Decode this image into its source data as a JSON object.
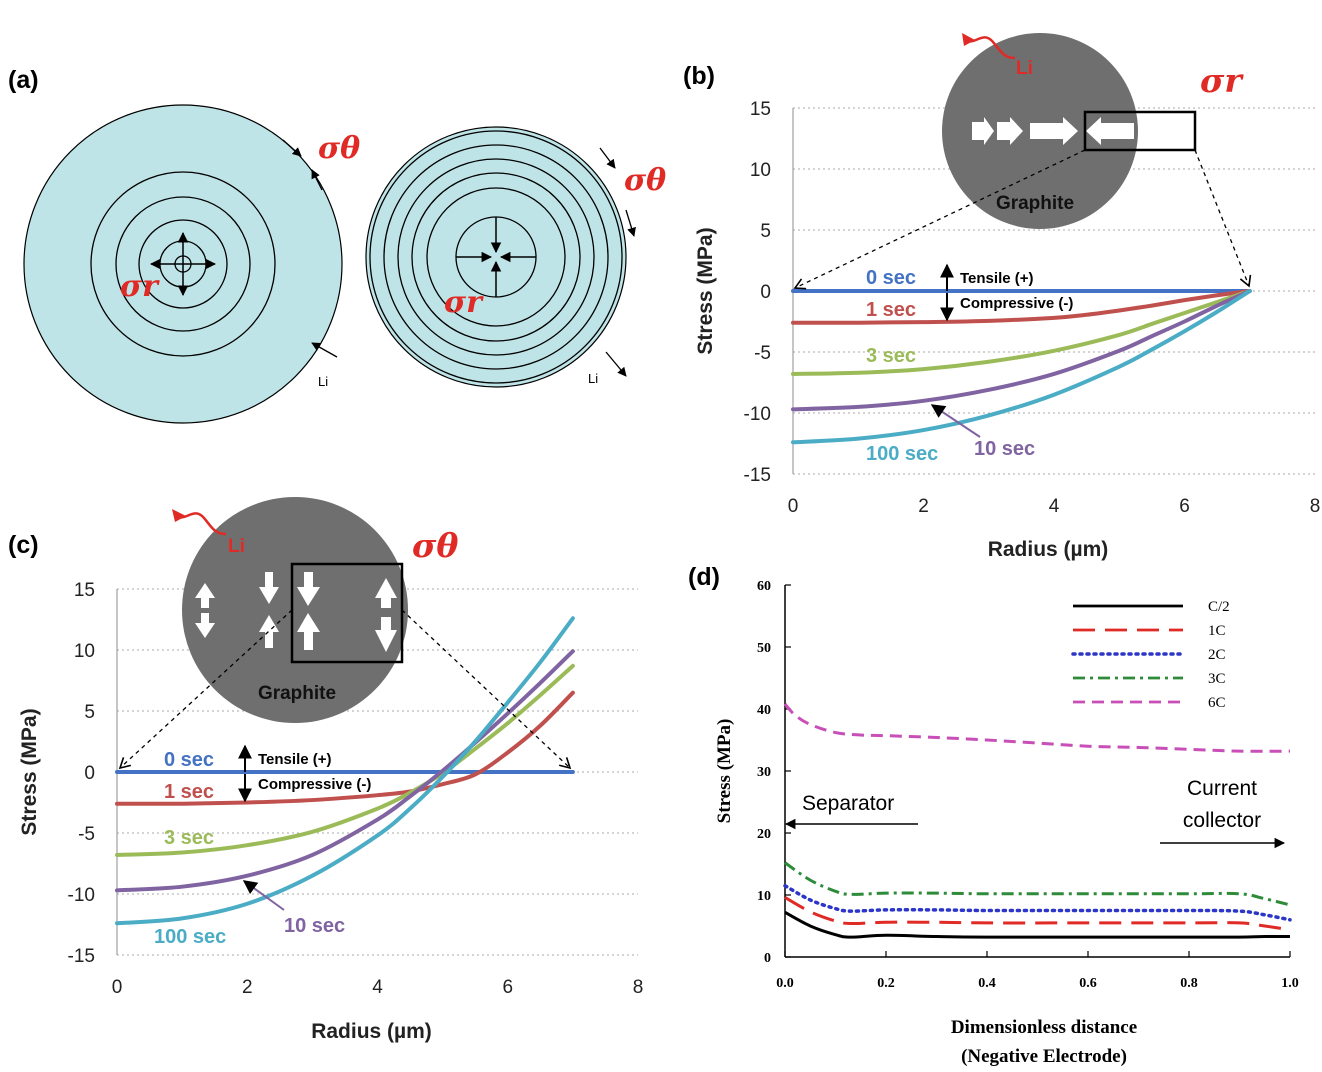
{
  "panels": {
    "a": {
      "label": "(a)",
      "sigma_theta_left": "σθ",
      "sigma_r_left": "σr",
      "li_left": "Li",
      "sigma_theta_right": "σθ",
      "sigma_r_right": "σr",
      "li_right": "Li"
    },
    "b": {
      "label": "(b)",
      "inset_label": "Graphite",
      "li": "Li",
      "sigma": "σr",
      "tensile": "Tensile (+)",
      "compressive": "Compressive (-)"
    },
    "c": {
      "label": "(c)",
      "inset_label": "Graphite",
      "li": "Li",
      "sigma": "σθ",
      "tensile": "Tensile (+)",
      "compressive": "Compressive (-)"
    },
    "d": {
      "label": "(d)",
      "left_note": "Separator",
      "right_note_1": "Current",
      "right_note_2": "collector"
    }
  },
  "colors": {
    "blue": "#4472c4",
    "red": "#c0504d",
    "green": "#9bbb59",
    "purple": "#8064a2",
    "cyan": "#4bacc6",
    "accent_red": "#e02a25",
    "disk": "#bfe4e8",
    "graphite": "#6f6f6f"
  },
  "chart_data": [
    {
      "panel": "b",
      "type": "line",
      "xlabel": "Radius (µm)",
      "ylabel": "Stress (MPa)",
      "xlim": [
        0,
        8
      ],
      "ylim": [
        -15,
        15
      ],
      "xticks": [
        "0",
        "2",
        "4",
        "6",
        "8"
      ],
      "yticks": [
        "-15",
        "-10",
        "-5",
        "0",
        "5",
        "10",
        "15"
      ],
      "grid": "horizontal dotted",
      "series": [
        {
          "name": "0 sec",
          "color": "#4472c4",
          "x": [
            0,
            1,
            2,
            3,
            4,
            5,
            6,
            7
          ],
          "y": [
            0,
            0,
            0,
            0,
            0,
            0,
            0,
            0
          ]
        },
        {
          "name": "1 sec",
          "color": "#c0504d",
          "x": [
            0,
            1,
            2,
            3,
            4,
            4.5,
            5,
            5.5,
            6,
            6.5,
            7
          ],
          "y": [
            -2.6,
            -2.6,
            -2.55,
            -2.45,
            -2.2,
            -1.95,
            -1.6,
            -1.2,
            -0.75,
            -0.35,
            0
          ]
        },
        {
          "name": "3 sec",
          "color": "#9bbb59",
          "x": [
            0,
            1,
            2,
            3,
            4,
            5,
            5.5,
            6,
            6.5,
            7
          ],
          "y": [
            -6.8,
            -6.7,
            -6.4,
            -5.8,
            -4.9,
            -3.6,
            -2.7,
            -1.8,
            -0.9,
            0
          ]
        },
        {
          "name": "10 sec",
          "color": "#8064a2",
          "x": [
            0,
            1,
            2,
            3,
            4,
            5,
            5.5,
            6,
            6.5,
            7
          ],
          "y": [
            -9.7,
            -9.5,
            -9.0,
            -8.1,
            -6.8,
            -4.9,
            -3.7,
            -2.5,
            -1.2,
            0
          ]
        },
        {
          "name": "100 sec",
          "color": "#4bacc6",
          "x": [
            0,
            1,
            2,
            3,
            4,
            5,
            5.5,
            6,
            6.5,
            7
          ],
          "y": [
            -12.4,
            -12.1,
            -11.4,
            -10.2,
            -8.5,
            -6.2,
            -4.8,
            -3.3,
            -1.7,
            0
          ]
        }
      ]
    },
    {
      "panel": "c",
      "type": "line",
      "xlabel": "Radius (µm)",
      "ylabel": "Stress (MPa)",
      "xlim": [
        0,
        8
      ],
      "ylim": [
        -15,
        15
      ],
      "xticks": [
        "0",
        "2",
        "4",
        "6",
        "8"
      ],
      "yticks": [
        "-15",
        "-10",
        "-5",
        "0",
        "5",
        "10",
        "15"
      ],
      "grid": "horizontal dotted",
      "series": [
        {
          "name": "0 sec",
          "color": "#4472c4",
          "x": [
            0,
            1,
            2,
            3,
            4,
            5,
            6,
            7
          ],
          "y": [
            0,
            0,
            0,
            0,
            0,
            0,
            0,
            0
          ]
        },
        {
          "name": "1 sec",
          "color": "#c0504d",
          "x": [
            0,
            1,
            2,
            3,
            4,
            4.5,
            5,
            5.5,
            6,
            6.5,
            7
          ],
          "y": [
            -2.6,
            -2.6,
            -2.5,
            -2.3,
            -1.9,
            -1.6,
            -1.0,
            -0.2,
            1.6,
            3.8,
            6.5
          ]
        },
        {
          "name": "3 sec",
          "color": "#9bbb59",
          "x": [
            0,
            1,
            2,
            3,
            4,
            4.5,
            5,
            5.5,
            6,
            6.5,
            7
          ],
          "y": [
            -6.8,
            -6.6,
            -6.0,
            -4.9,
            -3.0,
            -1.7,
            -0.1,
            1.9,
            4.0,
            6.3,
            8.7
          ]
        },
        {
          "name": "10 sec",
          "color": "#8064a2",
          "x": [
            0,
            1,
            2,
            3,
            4,
            4.5,
            5,
            5.5,
            6,
            6.5,
            7
          ],
          "y": [
            -9.7,
            -9.4,
            -8.5,
            -6.8,
            -3.9,
            -2.0,
            0.1,
            2.4,
            4.8,
            7.3,
            9.9
          ]
        },
        {
          "name": "100 sec",
          "color": "#4bacc6",
          "x": [
            0,
            1,
            2,
            3,
            4,
            4.5,
            5,
            5.5,
            6,
            6.5,
            7
          ],
          "y": [
            -12.4,
            -12.0,
            -10.8,
            -8.5,
            -5.2,
            -3.0,
            -0.4,
            2.5,
            5.7,
            9.0,
            12.6
          ]
        }
      ]
    },
    {
      "panel": "d",
      "type": "line",
      "xlabel": "Dimensionless distance",
      "xlabel2": "(Negative Electrode)",
      "ylabel": "Stress (MPa)",
      "xlim": [
        0,
        1
      ],
      "ylim": [
        0,
        60
      ],
      "xticks": [
        "0.0",
        "0.2",
        "0.4",
        "0.6",
        "0.8",
        "1.0"
      ],
      "yticks": [
        "0",
        "10",
        "20",
        "30",
        "40",
        "50",
        "60"
      ],
      "grid": "none",
      "legend": "top-right",
      "series": [
        {
          "name": "C/2",
          "color": "#000000",
          "dash": "solid",
          "x": [
            0,
            0.05,
            0.1,
            0.13,
            0.2,
            0.3,
            0.4,
            0.6,
            0.8,
            0.9,
            0.95,
            1.0
          ],
          "y": [
            7.2,
            5.0,
            3.6,
            3.2,
            3.5,
            3.3,
            3.2,
            3.2,
            3.2,
            3.2,
            3.3,
            3.3
          ]
        },
        {
          "name": "1C",
          "color": "#e02a25",
          "dash": "long",
          "x": [
            0,
            0.05,
            0.1,
            0.13,
            0.2,
            0.3,
            0.4,
            0.6,
            0.8,
            0.9,
            0.95,
            1.0
          ],
          "y": [
            9.6,
            7.3,
            5.8,
            5.4,
            5.6,
            5.6,
            5.5,
            5.5,
            5.5,
            5.5,
            5.0,
            4.4
          ]
        },
        {
          "name": "2C",
          "color": "#2b35c9",
          "dash": "dotted",
          "x": [
            0,
            0.05,
            0.1,
            0.13,
            0.2,
            0.3,
            0.4,
            0.6,
            0.8,
            0.9,
            0.95,
            1.0
          ],
          "y": [
            11.5,
            9.2,
            7.8,
            7.4,
            7.6,
            7.6,
            7.5,
            7.5,
            7.5,
            7.4,
            6.8,
            6.0
          ]
        },
        {
          "name": "3C",
          "color": "#2e8b3a",
          "dash": "dashdot",
          "x": [
            0,
            0.05,
            0.1,
            0.13,
            0.2,
            0.3,
            0.4,
            0.6,
            0.8,
            0.9,
            0.95,
            1.0
          ],
          "y": [
            15.2,
            12.4,
            10.6,
            10.1,
            10.3,
            10.3,
            10.2,
            10.2,
            10.2,
            10.2,
            9.4,
            8.4
          ]
        },
        {
          "name": "6C",
          "color": "#c94fb8",
          "dash": "dashed",
          "x": [
            0,
            0.02,
            0.05,
            0.1,
            0.15,
            0.2,
            0.3,
            0.4,
            0.5,
            0.6,
            0.7,
            0.8,
            0.9,
            1.0
          ],
          "y": [
            40.8,
            39.0,
            37.5,
            36.2,
            35.8,
            35.7,
            35.4,
            35.0,
            34.5,
            34.0,
            33.8,
            33.5,
            33.2,
            33.2
          ]
        }
      ]
    }
  ]
}
